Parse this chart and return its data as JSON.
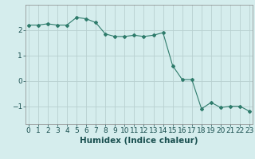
{
  "x": [
    0,
    1,
    2,
    3,
    4,
    5,
    6,
    7,
    8,
    9,
    10,
    11,
    12,
    13,
    14,
    15,
    16,
    17,
    18,
    19,
    20,
    21,
    22,
    23
  ],
  "y": [
    2.2,
    2.2,
    2.25,
    2.2,
    2.2,
    2.5,
    2.45,
    2.3,
    1.85,
    1.75,
    1.75,
    1.8,
    1.75,
    1.8,
    1.9,
    0.6,
    0.05,
    0.05,
    -1.1,
    -0.85,
    -1.05,
    -1.0,
    -1.0,
    -1.2
  ],
  "line_color": "#2e7b6b",
  "marker": "D",
  "marker_size": 2.0,
  "bg_color": "#d5eded",
  "grid_color": "#b8d0d0",
  "xlabel": "Humidex (Indice chaleur)",
  "ylim": [
    -1.7,
    3.0
  ],
  "yticks": [
    -1,
    0,
    1,
    2
  ],
  "xticks": [
    0,
    1,
    2,
    3,
    4,
    5,
    6,
    7,
    8,
    9,
    10,
    11,
    12,
    13,
    14,
    15,
    16,
    17,
    18,
    19,
    20,
    21,
    22,
    23
  ],
  "xlim": [
    -0.3,
    23.3
  ],
  "xlabel_fontsize": 7.5,
  "tick_fontsize": 6.5
}
